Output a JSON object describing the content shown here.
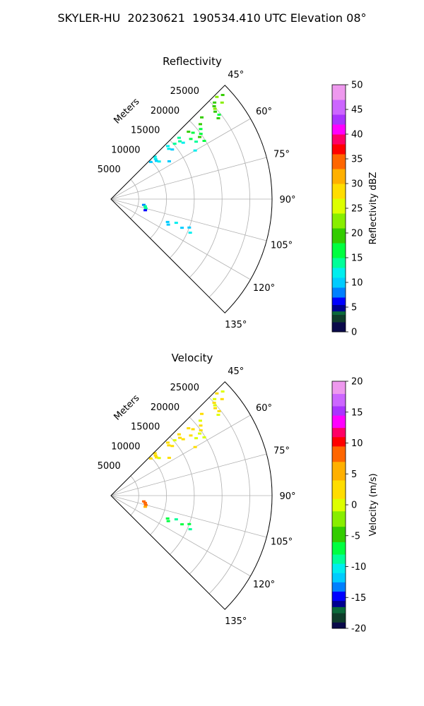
{
  "figure": {
    "title": "SKYLER-HU  20230621  190534.410 UTC Elevation 08°"
  },
  "chart_data": [
    {
      "type": "scatter",
      "projection": "polar-sector",
      "title": "Reflectivity",
      "radial_label": "Meters",
      "angle_range_deg": [
        45,
        135
      ],
      "radius_range": [
        0,
        29000
      ],
      "radial_ticks": [
        5000,
        10000,
        15000,
        20000,
        25000
      ],
      "angle_ticks": [
        "45°",
        "60°",
        "75°",
        "90°",
        "105°",
        "120°",
        "135°"
      ],
      "grid": true,
      "colorbar": {
        "label": "Reflectivity dBZ",
        "range": [
          0,
          50
        ],
        "ticks": [
          0,
          5,
          10,
          15,
          20,
          25,
          30,
          35,
          40,
          45,
          50
        ],
        "stops": [
          {
            "v": 0,
            "c": "#0a0a4a"
          },
          {
            "v": 2,
            "c": "#0f3d2a"
          },
          {
            "v": 3.5,
            "c": "#0b6a3a"
          },
          {
            "v": 4.2,
            "c": "#000090"
          },
          {
            "v": 5.5,
            "c": "#0000ff"
          },
          {
            "v": 7,
            "c": "#0080ff"
          },
          {
            "v": 9,
            "c": "#00ccff"
          },
          {
            "v": 11,
            "c": "#00eeee"
          },
          {
            "v": 13,
            "c": "#00ff99"
          },
          {
            "v": 15,
            "c": "#00ff40"
          },
          {
            "v": 18,
            "c": "#33cc00"
          },
          {
            "v": 21,
            "c": "#88ee00"
          },
          {
            "v": 24,
            "c": "#ddff00"
          },
          {
            "v": 27,
            "c": "#ffdd00"
          },
          {
            "v": 30,
            "c": "#ffb000"
          },
          {
            "v": 33,
            "c": "#ff6600"
          },
          {
            "v": 36,
            "c": "#ff0000"
          },
          {
            "v": 38,
            "c": "#ff0066"
          },
          {
            "v": 40,
            "c": "#ff00ff"
          },
          {
            "v": 42,
            "c": "#aa33ff"
          },
          {
            "v": 44,
            "c": "#cc66ff"
          },
          {
            "v": 47,
            "c": "#ee99ee"
          },
          {
            "v": 50,
            "c": "#ffe6ff"
          }
        ]
      },
      "points": [
        {
          "az": 46,
          "r": 26500,
          "v": 22
        },
        {
          "az": 47,
          "r": 25500,
          "v": 20
        },
        {
          "az": 48,
          "r": 25000,
          "v": 18
        },
        {
          "az": 49,
          "r": 24800,
          "v": 21
        },
        {
          "az": 50,
          "r": 24500,
          "v": 19
        },
        {
          "az": 52,
          "r": 24700,
          "v": 17
        },
        {
          "az": 47,
          "r": 27500,
          "v": 20
        },
        {
          "az": 49,
          "r": 26500,
          "v": 22
        },
        {
          "az": 53,
          "r": 24200,
          "v": 18
        },
        {
          "az": 48,
          "r": 22000,
          "v": 19
        },
        {
          "az": 50,
          "r": 21000,
          "v": 18
        },
        {
          "az": 52,
          "r": 20500,
          "v": 16
        },
        {
          "az": 54,
          "r": 20000,
          "v": 15
        },
        {
          "az": 55,
          "r": 19500,
          "v": 18
        },
        {
          "az": 51,
          "r": 19000,
          "v": 17
        },
        {
          "az": 49,
          "r": 18500,
          "v": 19
        },
        {
          "az": 53,
          "r": 18000,
          "v": 15
        },
        {
          "az": 56,
          "r": 18500,
          "v": 14
        },
        {
          "az": 48,
          "r": 16500,
          "v": 14
        },
        {
          "az": 50,
          "r": 16200,
          "v": 13
        },
        {
          "az": 52,
          "r": 16500,
          "v": 12
        },
        {
          "az": 49,
          "r": 15200,
          "v": 13
        },
        {
          "az": 47,
          "r": 14000,
          "v": 12
        },
        {
          "az": 49,
          "r": 13800,
          "v": 11
        },
        {
          "az": 51,
          "r": 14200,
          "v": 10
        },
        {
          "az": 46,
          "r": 11000,
          "v": 11
        },
        {
          "az": 48,
          "r": 10800,
          "v": 12
        },
        {
          "az": 50,
          "r": 10700,
          "v": 10
        },
        {
          "az": 52,
          "r": 11000,
          "v": 11
        },
        {
          "az": 47,
          "r": 9800,
          "v": 10
        },
        {
          "az": 57,
          "r": 12500,
          "v": 10
        },
        {
          "az": 60,
          "r": 17500,
          "v": 11
        },
        {
          "az": 58,
          "r": 19800,
          "v": 16
        },
        {
          "az": 100,
          "r": 6000,
          "v": 7
        },
        {
          "az": 102,
          "r": 6300,
          "v": 14
        },
        {
          "az": 105,
          "r": 6500,
          "v": 13
        },
        {
          "az": 108,
          "r": 6500,
          "v": 6
        },
        {
          "az": 112,
          "r": 11000,
          "v": 9
        },
        {
          "az": 114,
          "r": 11300,
          "v": 10
        },
        {
          "az": 110,
          "r": 12500,
          "v": 11
        },
        {
          "az": 112,
          "r": 13800,
          "v": 9
        },
        {
          "az": 110,
          "r": 15000,
          "v": 10
        },
        {
          "az": 113,
          "r": 15500,
          "v": 11
        }
      ]
    },
    {
      "type": "scatter",
      "projection": "polar-sector",
      "title": "Velocity",
      "radial_label": "Meters",
      "angle_range_deg": [
        45,
        135
      ],
      "radius_range": [
        0,
        29000
      ],
      "radial_ticks": [
        5000,
        10000,
        15000,
        20000,
        25000
      ],
      "angle_ticks": [
        "45°",
        "60°",
        "75°",
        "90°",
        "105°",
        "120°",
        "135°"
      ],
      "grid": true,
      "colorbar": {
        "label": "Velocity (m/s)",
        "range": [
          -20,
          20
        ],
        "ticks": [
          -20,
          -15,
          -10,
          -5,
          0,
          5,
          10,
          15,
          20
        ],
        "stops": [
          {
            "v": -20,
            "c": "#0a0a4a"
          },
          {
            "v": -19,
            "c": "#0f3d2a"
          },
          {
            "v": -17.5,
            "c": "#0b6a3a"
          },
          {
            "v": -16.5,
            "c": "#000090"
          },
          {
            "v": -15.5,
            "c": "#0000ff"
          },
          {
            "v": -14,
            "c": "#0080ff"
          },
          {
            "v": -12.5,
            "c": "#00ccff"
          },
          {
            "v": -11,
            "c": "#00eeee"
          },
          {
            "v": -9.5,
            "c": "#00ff99"
          },
          {
            "v": -8,
            "c": "#00ff40"
          },
          {
            "v": -6,
            "c": "#33cc00"
          },
          {
            "v": -3.5,
            "c": "#88ee00"
          },
          {
            "v": -1,
            "c": "#ddff00"
          },
          {
            "v": 1,
            "c": "#ffdd00"
          },
          {
            "v": 4,
            "c": "#ffb000"
          },
          {
            "v": 7,
            "c": "#ff6600"
          },
          {
            "v": 9.5,
            "c": "#ff0000"
          },
          {
            "v": 11,
            "c": "#ff0066"
          },
          {
            "v": 12.5,
            "c": "#ff00ff"
          },
          {
            "v": 14.5,
            "c": "#aa33ff"
          },
          {
            "v": 16,
            "c": "#cc66ff"
          },
          {
            "v": 18,
            "c": "#ee99ee"
          },
          {
            "v": 20,
            "c": "#ffe6ff"
          }
        ]
      },
      "points": [
        {
          "az": 46,
          "r": 26500,
          "v": 1
        },
        {
          "az": 47,
          "r": 25500,
          "v": 0
        },
        {
          "az": 48,
          "r": 25000,
          "v": 1
        },
        {
          "az": 49,
          "r": 24800,
          "v": 0
        },
        {
          "az": 50,
          "r": 24500,
          "v": 2
        },
        {
          "az": 52,
          "r": 24700,
          "v": 1
        },
        {
          "az": 47,
          "r": 27500,
          "v": 0
        },
        {
          "az": 49,
          "r": 26500,
          "v": 1
        },
        {
          "az": 53,
          "r": 24200,
          "v": 0
        },
        {
          "az": 48,
          "r": 22000,
          "v": 1
        },
        {
          "az": 50,
          "r": 21000,
          "v": 0
        },
        {
          "az": 52,
          "r": 20500,
          "v": 2
        },
        {
          "az": 54,
          "r": 20000,
          "v": 1
        },
        {
          "az": 55,
          "r": 19500,
          "v": 0
        },
        {
          "az": 51,
          "r": 19000,
          "v": 1
        },
        {
          "az": 49,
          "r": 18500,
          "v": 2
        },
        {
          "az": 53,
          "r": 18000,
          "v": 1
        },
        {
          "az": 56,
          "r": 18500,
          "v": 0
        },
        {
          "az": 48,
          "r": 16500,
          "v": 1
        },
        {
          "az": 50,
          "r": 16200,
          "v": 2
        },
        {
          "az": 52,
          "r": 16500,
          "v": 1
        },
        {
          "az": 49,
          "r": 15200,
          "v": 0
        },
        {
          "az": 47,
          "r": 14000,
          "v": 1
        },
        {
          "az": 49,
          "r": 13800,
          "v": 2
        },
        {
          "az": 51,
          "r": 14200,
          "v": 1
        },
        {
          "az": 46,
          "r": 11000,
          "v": 1
        },
        {
          "az": 48,
          "r": 10800,
          "v": 2
        },
        {
          "az": 50,
          "r": 10700,
          "v": 1
        },
        {
          "az": 52,
          "r": 11000,
          "v": 0
        },
        {
          "az": 47,
          "r": 9800,
          "v": 1
        },
        {
          "az": 57,
          "r": 12500,
          "v": 2
        },
        {
          "az": 60,
          "r": 17500,
          "v": 1
        },
        {
          "az": 58,
          "r": 19800,
          "v": 0
        },
        {
          "az": 100,
          "r": 6000,
          "v": 8
        },
        {
          "az": 102,
          "r": 6300,
          "v": 7
        },
        {
          "az": 105,
          "r": 6500,
          "v": 8
        },
        {
          "az": 108,
          "r": 6500,
          "v": 6
        },
        {
          "az": 112,
          "r": 11000,
          "v": -8
        },
        {
          "az": 114,
          "r": 11300,
          "v": -7
        },
        {
          "az": 110,
          "r": 12500,
          "v": -9
        },
        {
          "az": 112,
          "r": 13800,
          "v": -8
        },
        {
          "az": 110,
          "r": 15000,
          "v": -7
        },
        {
          "az": 113,
          "r": 15500,
          "v": -9
        }
      ]
    }
  ]
}
